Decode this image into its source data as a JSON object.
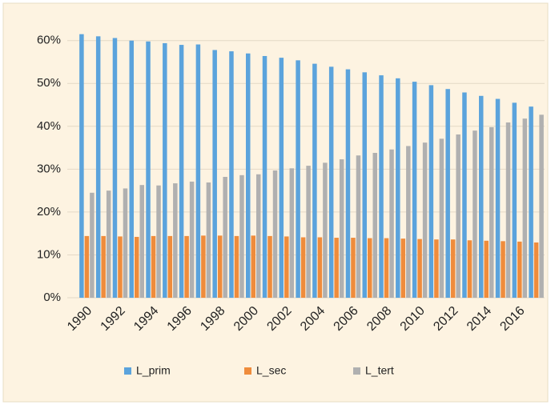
{
  "chart_data": {
    "type": "bar",
    "categories": [
      "1990",
      null,
      "1992",
      null,
      "1994",
      null,
      "1996",
      null,
      "1998",
      null,
      "2000",
      null,
      "2002",
      null,
      "2004",
      null,
      "2006",
      null,
      "2008",
      null,
      "2010",
      null,
      "2012",
      null,
      "2014",
      null,
      "2016",
      null
    ],
    "series": [
      {
        "name": "L_prim",
        "color": "#5ba3dc",
        "values": [
          61.5,
          61,
          60.6,
          60,
          59.8,
          59.4,
          59,
          59.1,
          57.8,
          57.5,
          57,
          56.4,
          56,
          55.4,
          54.6,
          53.9,
          53.3,
          52.6,
          51.9,
          51.2,
          50.4,
          49.6,
          48.7,
          47.9,
          47.1,
          46.4,
          45.5,
          44.6
        ]
      },
      {
        "name": "L_sec",
        "color": "#ef8c3c",
        "values": [
          14.4,
          14.4,
          14.3,
          14.2,
          14.4,
          14.4,
          14.4,
          14.5,
          14.5,
          14.4,
          14.5,
          14.4,
          14.3,
          14.1,
          14.1,
          14,
          14,
          13.9,
          13.9,
          13.8,
          13.7,
          13.6,
          13.6,
          13.4,
          13.3,
          13.2,
          13.1,
          12.9
        ]
      },
      {
        "name": "L_tert",
        "color": "#b0b0b0",
        "values": [
          24.5,
          25,
          25.5,
          26.3,
          26.2,
          26.7,
          27.1,
          26.9,
          28.2,
          28.6,
          28.8,
          29.7,
          30.2,
          30.8,
          31.5,
          32.3,
          33.2,
          33.8,
          34.6,
          35.4,
          36.2,
          37.1,
          38.1,
          39,
          39.8,
          40.9,
          41.8,
          42.7
        ]
      }
    ],
    "ylim": [
      0,
      62
    ],
    "yticks": [
      {
        "value": 0,
        "label": "0%"
      },
      {
        "value": 10,
        "label": "10%"
      },
      {
        "value": 20,
        "label": "20%"
      },
      {
        "value": 30,
        "label": "30%"
      },
      {
        "value": 40,
        "label": "40%"
      },
      {
        "value": 50,
        "label": "50%"
      },
      {
        "value": 60,
        "label": "60%"
      }
    ],
    "grid": true,
    "legend": "bottom"
  }
}
